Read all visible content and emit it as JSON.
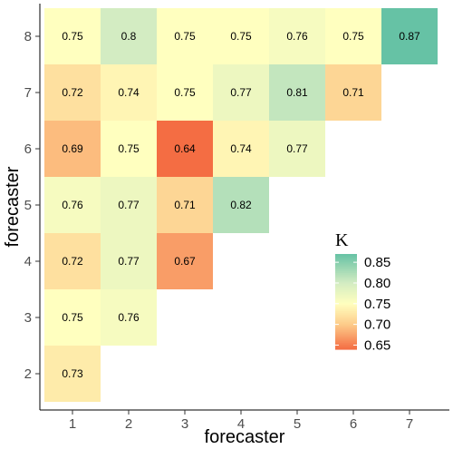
{
  "chart_data": {
    "type": "heatmap",
    "xlabel": "forecaster",
    "ylabel": "forecaster",
    "x_categories": [
      "1",
      "2",
      "3",
      "4",
      "5",
      "6",
      "7"
    ],
    "y_categories": [
      "2",
      "3",
      "4",
      "5",
      "6",
      "7",
      "8"
    ],
    "cells": [
      {
        "x": "1",
        "y": "2",
        "value": 0.73,
        "label": "0.73"
      },
      {
        "x": "1",
        "y": "3",
        "value": 0.75,
        "label": "0.75"
      },
      {
        "x": "2",
        "y": "3",
        "value": 0.76,
        "label": "0.76"
      },
      {
        "x": "1",
        "y": "4",
        "value": 0.72,
        "label": "0.72"
      },
      {
        "x": "2",
        "y": "4",
        "value": 0.77,
        "label": "0.77"
      },
      {
        "x": "3",
        "y": "4",
        "value": 0.67,
        "label": "0.67"
      },
      {
        "x": "1",
        "y": "5",
        "value": 0.76,
        "label": "0.76"
      },
      {
        "x": "2",
        "y": "5",
        "value": 0.77,
        "label": "0.77"
      },
      {
        "x": "3",
        "y": "5",
        "value": 0.71,
        "label": "0.71"
      },
      {
        "x": "4",
        "y": "5",
        "value": 0.82,
        "label": "0.82"
      },
      {
        "x": "1",
        "y": "6",
        "value": 0.69,
        "label": "0.69"
      },
      {
        "x": "2",
        "y": "6",
        "value": 0.75,
        "label": "0.75"
      },
      {
        "x": "3",
        "y": "6",
        "value": 0.64,
        "label": "0.64"
      },
      {
        "x": "4",
        "y": "6",
        "value": 0.74,
        "label": "0.74"
      },
      {
        "x": "5",
        "y": "6",
        "value": 0.77,
        "label": "0.77"
      },
      {
        "x": "1",
        "y": "7",
        "value": 0.72,
        "label": "0.72"
      },
      {
        "x": "2",
        "y": "7",
        "value": 0.74,
        "label": "0.74"
      },
      {
        "x": "3",
        "y": "7",
        "value": 0.75,
        "label": "0.75"
      },
      {
        "x": "4",
        "y": "7",
        "value": 0.77,
        "label": "0.77"
      },
      {
        "x": "5",
        "y": "7",
        "value": 0.81,
        "label": "0.81"
      },
      {
        "x": "6",
        "y": "7",
        "value": 0.71,
        "label": "0.71"
      },
      {
        "x": "1",
        "y": "8",
        "value": 0.75,
        "label": "0.75"
      },
      {
        "x": "2",
        "y": "8",
        "value": 0.8,
        "label": "0.8"
      },
      {
        "x": "3",
        "y": "8",
        "value": 0.75,
        "label": "0.75"
      },
      {
        "x": "4",
        "y": "8",
        "value": 0.75,
        "label": "0.75"
      },
      {
        "x": "5",
        "y": "8",
        "value": 0.76,
        "label": "0.76"
      },
      {
        "x": "6",
        "y": "8",
        "value": 0.75,
        "label": "0.75"
      },
      {
        "x": "7",
        "y": "8",
        "value": 0.87,
        "label": "0.87"
      }
    ],
    "legend": {
      "title": "K",
      "position": "right",
      "ticks": [
        {
          "value": 0.85,
          "label": "0.85"
        },
        {
          "value": 0.8,
          "label": "0.80"
        },
        {
          "value": 0.75,
          "label": "0.75"
        },
        {
          "value": 0.7,
          "label": "0.70"
        },
        {
          "value": 0.65,
          "label": "0.65"
        }
      ]
    },
    "color_scale": {
      "domain": [
        0.64,
        0.87
      ],
      "stops": [
        {
          "value": 0.64,
          "color": "#f46d43"
        },
        {
          "value": 0.7,
          "color": "#fdcc8a"
        },
        {
          "value": 0.75,
          "color": "#ffffbf"
        },
        {
          "value": 0.8,
          "color": "#d3ecc2"
        },
        {
          "value": 0.87,
          "color": "#66c2a5"
        }
      ]
    },
    "grid": false
  }
}
